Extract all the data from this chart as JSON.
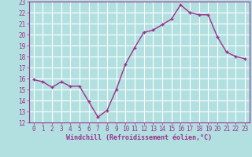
{
  "x": [
    0,
    1,
    2,
    3,
    4,
    5,
    6,
    7,
    8,
    9,
    10,
    11,
    12,
    13,
    14,
    15,
    16,
    17,
    18,
    19,
    20,
    21,
    22,
    23
  ],
  "y": [
    15.9,
    15.7,
    15.2,
    15.7,
    15.3,
    15.3,
    13.9,
    12.5,
    13.1,
    15.0,
    17.3,
    18.8,
    20.2,
    20.4,
    20.9,
    21.4,
    22.7,
    22.0,
    21.8,
    21.8,
    19.8,
    18.4,
    18.0,
    17.8
  ],
  "line_color": "#9b3090",
  "marker": "+",
  "background_color": "#b2e0e0",
  "grid_color": "#ffffff",
  "xlabel": "Windchill (Refroidissement éolien,°C)",
  "xlabel_color": "#9b3090",
  "tick_color": "#9b3090",
  "spine_color": "#9b3090",
  "ylim": [
    12,
    23
  ],
  "xlim": [
    -0.5,
    23.5
  ],
  "yticks": [
    12,
    13,
    14,
    15,
    16,
    17,
    18,
    19,
    20,
    21,
    22,
    23
  ],
  "xticks": [
    0,
    1,
    2,
    3,
    4,
    5,
    6,
    7,
    8,
    9,
    10,
    11,
    12,
    13,
    14,
    15,
    16,
    17,
    18,
    19,
    20,
    21,
    22,
    23
  ],
  "tick_fontsize": 5.5,
  "xlabel_fontsize": 6.0,
  "marker_size": 3,
  "linewidth": 1.0
}
